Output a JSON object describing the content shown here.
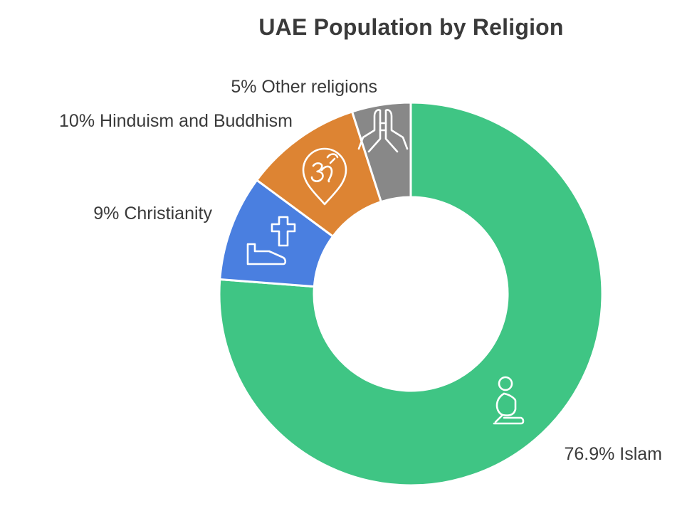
{
  "chart_data": {
    "type": "pie",
    "title": "UAE Population by Religion",
    "slices": [
      {
        "name": "Islam",
        "value": 76.9,
        "label": "76.9% Islam",
        "color": "#3fc584",
        "icon": "praying-person-icon"
      },
      {
        "name": "Christianity",
        "value": 9,
        "label": "9% Christianity",
        "color": "#4a7fe0",
        "icon": "cross-icon"
      },
      {
        "name": "Hinduism and Buddhism",
        "value": 10,
        "label": "10% Hinduism and Buddhism",
        "color": "#dd8433",
        "icon": "om-icon"
      },
      {
        "name": "Other religions",
        "value": 5,
        "label": "5% Other religions",
        "color": "#888888",
        "icon": "praying-hands-icon"
      }
    ]
  }
}
